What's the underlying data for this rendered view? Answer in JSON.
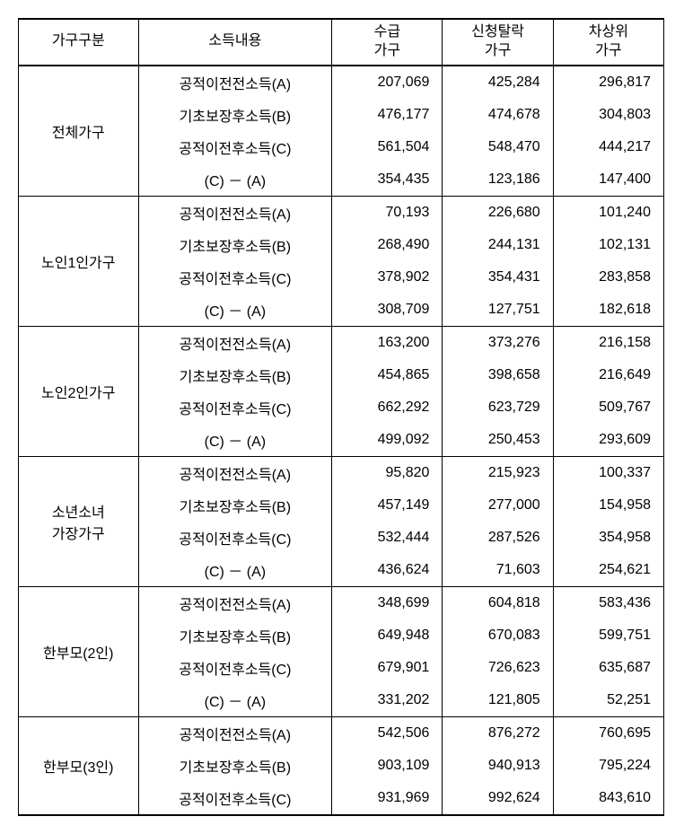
{
  "table": {
    "columns": [
      {
        "label": "가구구분",
        "class": "col-category"
      },
      {
        "label": "소득내용",
        "class": "col-income"
      },
      {
        "label": "수급\n가구",
        "class": "col-val"
      },
      {
        "label": "신청탈락\n가구",
        "class": "col-val"
      },
      {
        "label": "차상위\n가구",
        "class": "col-val"
      }
    ],
    "income_labels": {
      "a": "공적이전전소득(A)",
      "b": "기초보장후소득(B)",
      "c": "공적이전후소득(C)",
      "d": "(C) － (A)"
    },
    "groups": [
      {
        "category": "전체가구",
        "rows": [
          {
            "key": "a",
            "vals": [
              "207,069",
              "425,284",
              "296,817"
            ]
          },
          {
            "key": "b",
            "vals": [
              "476,177",
              "474,678",
              "304,803"
            ]
          },
          {
            "key": "c",
            "vals": [
              "561,504",
              "548,470",
              "444,217"
            ]
          },
          {
            "key": "d",
            "vals": [
              "354,435",
              "123,186",
              "147,400"
            ]
          }
        ]
      },
      {
        "category": "노인1인가구",
        "rows": [
          {
            "key": "a",
            "vals": [
              "70,193",
              "226,680",
              "101,240"
            ]
          },
          {
            "key": "b",
            "vals": [
              "268,490",
              "244,131",
              "102,131"
            ]
          },
          {
            "key": "c",
            "vals": [
              "378,902",
              "354,431",
              "283,858"
            ]
          },
          {
            "key": "d",
            "vals": [
              "308,709",
              "127,751",
              "182,618"
            ]
          }
        ]
      },
      {
        "category": "노인2인가구",
        "rows": [
          {
            "key": "a",
            "vals": [
              "163,200",
              "373,276",
              "216,158"
            ]
          },
          {
            "key": "b",
            "vals": [
              "454,865",
              "398,658",
              "216,649"
            ]
          },
          {
            "key": "c",
            "vals": [
              "662,292",
              "623,729",
              "509,767"
            ]
          },
          {
            "key": "d",
            "vals": [
              "499,092",
              "250,453",
              "293,609"
            ]
          }
        ]
      },
      {
        "category": "소년소녀\n가장가구",
        "rows": [
          {
            "key": "a",
            "vals": [
              "95,820",
              "215,923",
              "100,337"
            ]
          },
          {
            "key": "b",
            "vals": [
              "457,149",
              "277,000",
              "154,958"
            ]
          },
          {
            "key": "c",
            "vals": [
              "532,444",
              "287,526",
              "354,958"
            ]
          },
          {
            "key": "d",
            "vals": [
              "436,624",
              "71,603",
              "254,621"
            ]
          }
        ]
      },
      {
        "category": "한부모(2인)",
        "rows": [
          {
            "key": "a",
            "vals": [
              "348,699",
              "604,818",
              "583,436"
            ]
          },
          {
            "key": "b",
            "vals": [
              "649,948",
              "670,083",
              "599,751"
            ]
          },
          {
            "key": "c",
            "vals": [
              "679,901",
              "726,623",
              "635,687"
            ]
          },
          {
            "key": "d",
            "vals": [
              "331,202",
              "121,805",
              "52,251"
            ]
          }
        ]
      },
      {
        "category": "한부모(3인)",
        "rows": [
          {
            "key": "a",
            "vals": [
              "542,506",
              "876,272",
              "760,695"
            ]
          },
          {
            "key": "b",
            "vals": [
              "903,109",
              "940,913",
              "795,224"
            ]
          },
          {
            "key": "c",
            "vals": [
              "931,969",
              "992,624",
              "843,610"
            ]
          }
        ]
      }
    ],
    "styling": {
      "font_family": "Malgun Gothic",
      "font_size_pt": 12,
      "border_color": "#000000",
      "background_color": "#ffffff",
      "header_border_top_width": 2,
      "header_border_bottom_width": 2,
      "group_divider_width": 1,
      "outer_bottom_border_width": 2,
      "value_align": "right",
      "label_align": "center"
    }
  }
}
